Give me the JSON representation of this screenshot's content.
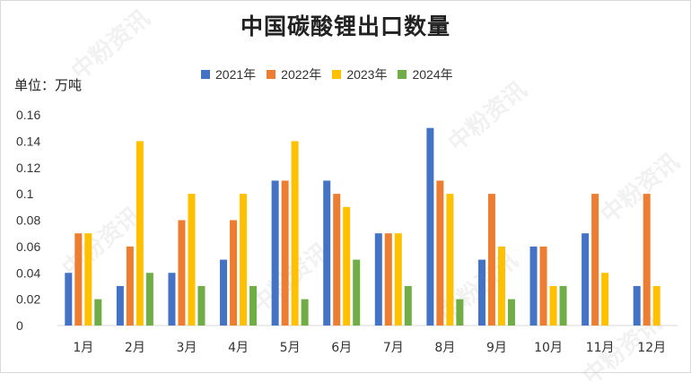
{
  "watermark": "中粉资讯",
  "chart_data": {
    "type": "bar",
    "title": "中国碳酸锂出口数量",
    "ylabel": "单位：万吨",
    "xlabel": "",
    "ylim": [
      0,
      0.16
    ],
    "yticks": [
      0,
      0.02,
      0.04,
      0.06,
      0.08,
      0.1,
      0.12,
      0.14,
      0.16
    ],
    "yticklabels": [
      "0",
      "0.02",
      "0.04",
      "0.06",
      "0.08",
      "0.1",
      "0.12",
      "0.14",
      "0.16"
    ],
    "legend_position": "top",
    "grid": false,
    "categories": [
      "1月",
      "2月",
      "3月",
      "4月",
      "5月",
      "6月",
      "7月",
      "8月",
      "9月",
      "10月",
      "11月",
      "12月"
    ],
    "series": [
      {
        "name": "2021年",
        "color": "#4472c4",
        "values": [
          0.04,
          0.03,
          0.04,
          0.05,
          0.11,
          0.11,
          0.07,
          0.15,
          0.05,
          0.06,
          0.07,
          0.03
        ]
      },
      {
        "name": "2022年",
        "color": "#ed7d31",
        "values": [
          0.07,
          0.06,
          0.08,
          0.08,
          0.11,
          0.1,
          0.07,
          0.11,
          0.1,
          0.06,
          0.1,
          0.1
        ]
      },
      {
        "name": "2023年",
        "color": "#ffc000",
        "values": [
          0.07,
          0.14,
          0.1,
          0.1,
          0.14,
          0.09,
          0.07,
          0.1,
          0.06,
          0.03,
          0.04,
          0.03
        ]
      },
      {
        "name": "2024年",
        "color": "#70ad47",
        "values": [
          0.02,
          0.04,
          0.03,
          0.03,
          0.02,
          0.05,
          0.03,
          0.02,
          0.02,
          0.03,
          null,
          null
        ]
      }
    ]
  }
}
